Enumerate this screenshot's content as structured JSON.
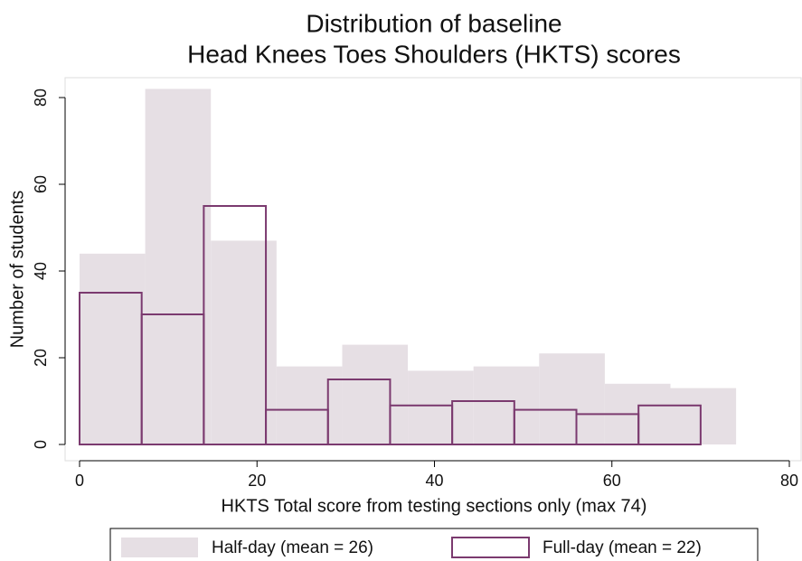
{
  "chart_data": {
    "type": "histogram",
    "title": [
      "Distribution of baseline",
      "Head Knees Toes Shoulders (HKTS) scores"
    ],
    "xlabel": "HKTS Total score from testing sections only (max 74)",
    "ylabel": "Number of students",
    "xlim": [
      0,
      80
    ],
    "xticks": [
      0,
      20,
      40,
      60,
      80
    ],
    "ylim": [
      0,
      80
    ],
    "yticks": [
      0,
      20,
      40,
      60,
      80
    ],
    "legend": "bottom",
    "series": [
      {
        "name": "Half-day (mean = 26)",
        "color": "#e6dfe4",
        "filled": true,
        "bins": [
          0,
          7.4,
          14.8,
          22.2,
          29.6,
          37,
          44.4,
          51.8,
          59.2,
          66.6,
          74
        ],
        "values": [
          44,
          82,
          47,
          18,
          23,
          17,
          18,
          21,
          14,
          13
        ]
      },
      {
        "name": "Full-day (mean = 22)",
        "color": "#7b3a6f",
        "filled": false,
        "bins": [
          0,
          7,
          14,
          21,
          28,
          35,
          42,
          49,
          56,
          63,
          70
        ],
        "values": [
          35,
          30,
          55,
          8,
          15,
          9,
          10,
          8,
          7,
          9
        ]
      }
    ]
  }
}
